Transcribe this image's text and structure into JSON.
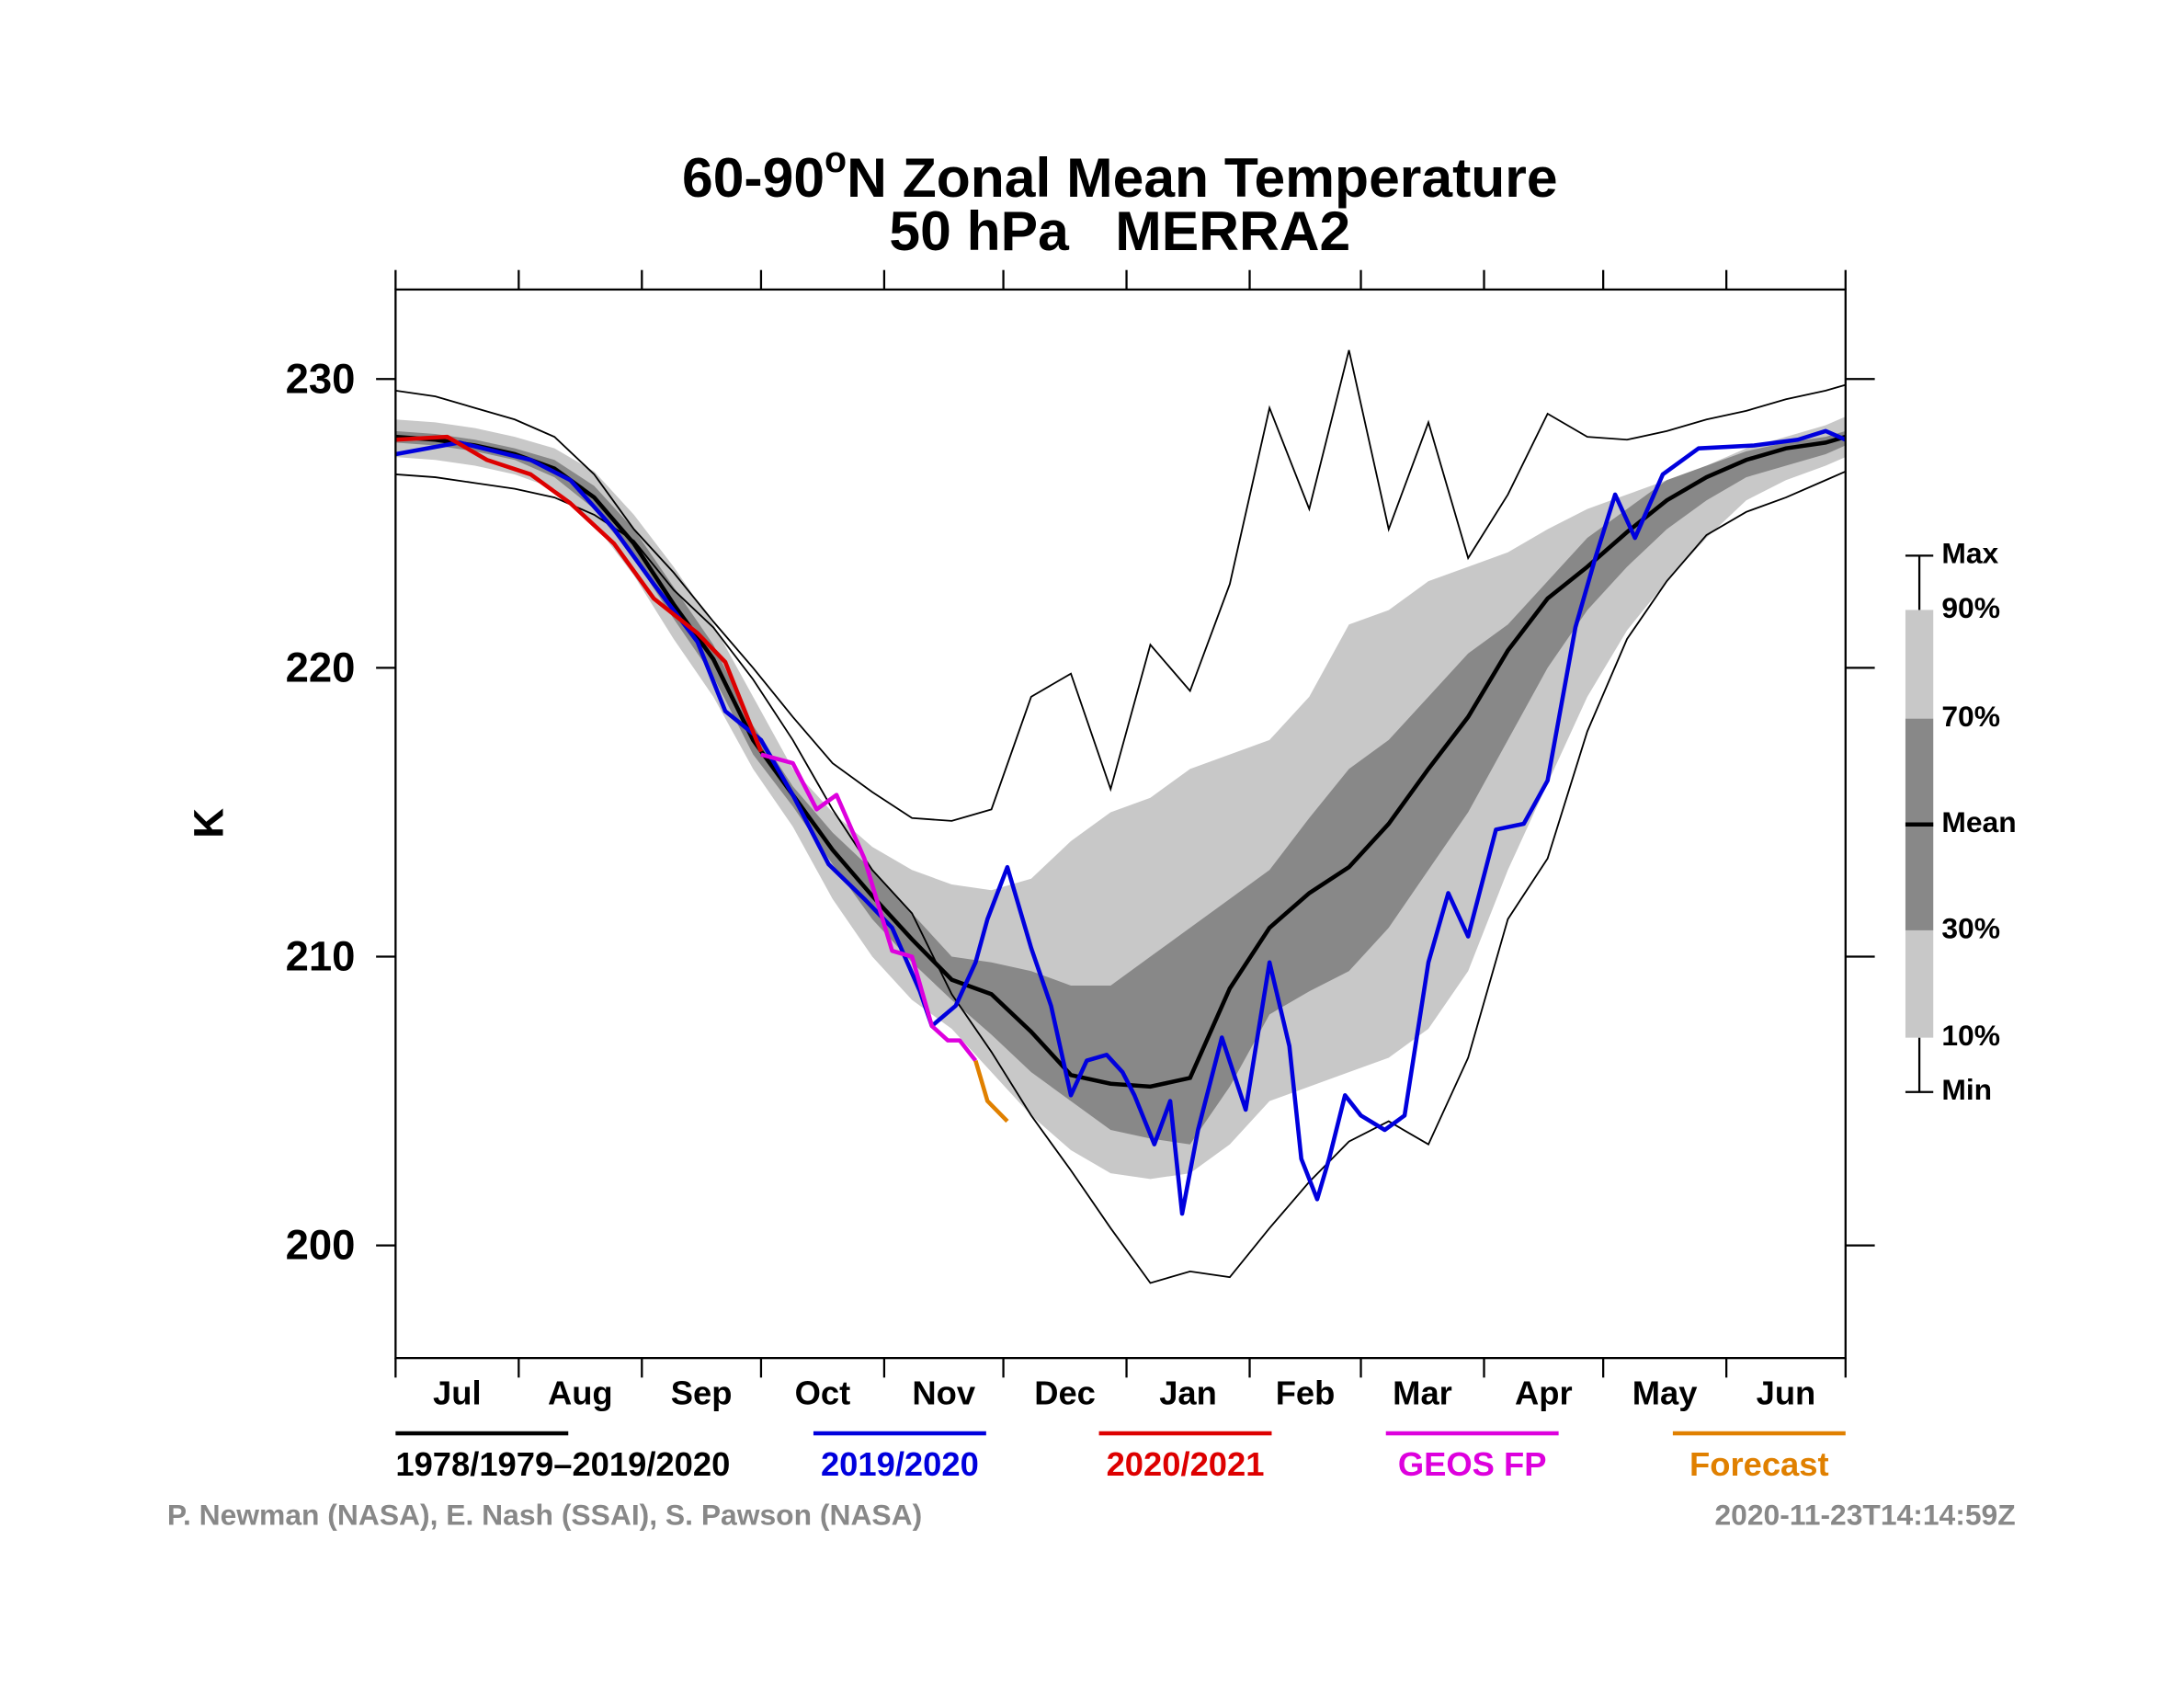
{
  "chart_data": {
    "type": "line",
    "title": [
      "60-90",
      "o",
      "N Zonal Mean Temperature"
    ],
    "subtitle": "50 hPa   MERRA2",
    "y_label": "K",
    "xlim": [
      0,
      365
    ],
    "xticks": [
      0,
      31,
      62,
      92,
      123,
      153,
      184,
      215,
      243,
      274,
      304,
      335,
      365
    ],
    "month_labels": [
      "Jul",
      "Aug",
      "Sep",
      "Oct",
      "Nov",
      "Dec",
      "Jan",
      "Feb",
      "Mar",
      "Apr",
      "May",
      "Jun"
    ],
    "ylim": [
      196.1,
      233.1
    ],
    "yticks": [
      200,
      210,
      220,
      230
    ],
    "x": [
      0,
      10,
      20,
      30,
      40,
      50,
      60,
      70,
      80,
      90,
      100,
      110,
      120,
      130,
      140,
      150,
      160,
      170,
      180,
      190,
      200,
      210,
      220,
      230,
      240,
      250,
      260,
      270,
      280,
      290,
      300,
      310,
      320,
      330,
      340,
      350,
      360,
      365
    ],
    "climatology": {
      "name": "1978/1979–2019/2020",
      "color": "#000000",
      "outer_band_color": "#c8c8c8",
      "inner_band_color": "#888888",
      "max": [
        229.6,
        229.4,
        229.0,
        228.6,
        228.0,
        226.7,
        224.8,
        223.3,
        221.6,
        220.0,
        218.3,
        216.7,
        215.7,
        214.8,
        214.7,
        215.1,
        219.0,
        219.8,
        215.8,
        220.8,
        219.2,
        222.9,
        229.0,
        225.5,
        231.0,
        224.8,
        228.5,
        223.8,
        226.0,
        228.8,
        228.0,
        227.9,
        228.2,
        228.6,
        228.9,
        229.3,
        229.6,
        229.8
      ],
      "p90": [
        228.6,
        228.5,
        228.3,
        228.0,
        227.6,
        226.8,
        225.3,
        223.5,
        221.5,
        219.0,
        216.5,
        215.0,
        213.8,
        213.0,
        212.5,
        212.3,
        212.7,
        214.0,
        215.0,
        215.5,
        216.5,
        217.0,
        217.5,
        219.0,
        221.5,
        222.0,
        223.0,
        223.5,
        224.0,
        224.8,
        225.5,
        226.0,
        226.5,
        227.0,
        227.6,
        228.0,
        228.4,
        228.7
      ],
      "p70": [
        228.2,
        228.1,
        227.9,
        227.6,
        227.2,
        226.3,
        224.8,
        222.8,
        220.8,
        218.0,
        215.9,
        214.3,
        213.0,
        211.5,
        210.0,
        209.8,
        209.5,
        209.0,
        209.0,
        210.0,
        211.0,
        212.0,
        213.0,
        214.8,
        216.5,
        217.5,
        219.0,
        220.5,
        221.5,
        223.0,
        224.5,
        225.5,
        226.5,
        227.0,
        227.5,
        227.8,
        228.0,
        228.2
      ],
      "mean": [
        228.0,
        227.9,
        227.7,
        227.4,
        226.9,
        225.9,
        224.3,
        222.2,
        220.3,
        217.5,
        215.6,
        213.7,
        212.1,
        210.6,
        209.2,
        208.7,
        207.4,
        205.9,
        205.6,
        205.5,
        205.8,
        208.9,
        211.0,
        212.2,
        213.1,
        214.6,
        216.5,
        218.3,
        220.6,
        222.4,
        223.5,
        224.7,
        225.8,
        226.6,
        227.2,
        227.6,
        227.8,
        228.0
      ],
      "p30": [
        227.8,
        227.7,
        227.5,
        227.2,
        226.6,
        225.5,
        223.8,
        221.7,
        219.7,
        217.0,
        215.2,
        213.2,
        211.3,
        209.8,
        208.5,
        207.3,
        206.0,
        205.0,
        204.0,
        203.7,
        203.5,
        205.5,
        208.0,
        208.8,
        209.5,
        211.0,
        213.0,
        215.0,
        217.5,
        220.0,
        222.0,
        223.5,
        224.8,
        225.8,
        226.6,
        227.0,
        227.4,
        227.7
      ],
      "p10": [
        227.3,
        227.2,
        227.0,
        226.7,
        226.2,
        225.0,
        223.2,
        221.0,
        219.0,
        216.5,
        214.5,
        212.0,
        210.0,
        208.5,
        207.5,
        206.0,
        204.5,
        203.3,
        202.5,
        202.3,
        202.5,
        203.5,
        205.0,
        205.5,
        206.0,
        206.5,
        207.5,
        209.5,
        213.0,
        216.0,
        219.0,
        221.3,
        223.0,
        224.5,
        225.8,
        226.5,
        227.0,
        227.3
      ],
      "min": [
        226.7,
        226.6,
        226.4,
        226.2,
        225.9,
        225.3,
        224.4,
        222.7,
        221.4,
        219.6,
        217.5,
        215.1,
        213.0,
        211.5,
        208.7,
        206.7,
        204.5,
        202.6,
        200.6,
        198.7,
        199.1,
        198.9,
        200.6,
        202.2,
        203.6,
        204.3,
        203.5,
        206.5,
        211.3,
        213.4,
        217.8,
        221.0,
        223.0,
        224.6,
        225.4,
        225.9,
        226.5,
        226.8
      ]
    },
    "shading_key": [
      "Max",
      "90%",
      "70%",
      "Mean",
      "30%",
      "10%",
      "Min"
    ],
    "series": [
      {
        "name": "2019/2020",
        "color": "#0000dd",
        "x": [
          0,
          16,
          34,
          44,
          55,
          65,
          76,
          83,
          92,
          100,
          109,
          118,
          125,
          132,
          135,
          141,
          146,
          149,
          154,
          160,
          165,
          170,
          174,
          179,
          183,
          186,
          191,
          195,
          198,
          202,
          208,
          214,
          220,
          225,
          228,
          232,
          235,
          239,
          243,
          249,
          254,
          260,
          265,
          270,
          277,
          284,
          290,
          297,
          302,
          307,
          312,
          319,
          328,
          342,
          353,
          360,
          365
        ],
        "values": [
          227.4,
          227.8,
          227.2,
          226.5,
          224.8,
          222.9,
          220.9,
          218.5,
          217.5,
          215.6,
          213.2,
          212.0,
          211.0,
          208.8,
          207.6,
          208.3,
          209.8,
          211.3,
          213.1,
          210.3,
          208.3,
          205.2,
          206.4,
          206.6,
          206.0,
          205.2,
          203.5,
          205.0,
          201.1,
          204.0,
          207.2,
          204.7,
          209.8,
          206.9,
          203.0,
          201.6,
          203.0,
          205.2,
          204.5,
          204.0,
          204.5,
          209.8,
          212.2,
          210.7,
          214.4,
          214.6,
          216.1,
          221.4,
          223.8,
          226.0,
          224.5,
          226.7,
          227.6,
          227.7,
          227.9,
          228.2,
          227.9
        ]
      },
      {
        "name": "2020/2021",
        "color": "#dd0000",
        "x": [
          0,
          13,
          23,
          34,
          44,
          55,
          65,
          76,
          83,
          92
        ],
        "values": [
          227.9,
          228.0,
          227.2,
          226.7,
          225.7,
          224.3,
          222.4,
          221.2,
          220.2,
          217.1
        ]
      },
      {
        "name": "GEOS FP",
        "color": "#dd00dd",
        "x": [
          92,
          100,
          106,
          111,
          118,
          125,
          130,
          135,
          139,
          142,
          146
        ],
        "values": [
          217.0,
          216.7,
          215.1,
          215.6,
          213.4,
          210.2,
          210.0,
          207.6,
          207.1,
          207.1,
          206.4
        ]
      },
      {
        "name": "Forecast",
        "color": "#e08000",
        "x": [
          146,
          149,
          154
        ],
        "values": [
          206.4,
          205.0,
          204.3
        ]
      }
    ],
    "credits": "P. Newman (NASA), E. Nash (SSAI), S. Pawson (NASA)",
    "timestamp": "2020-11-23T14:14:59Z"
  }
}
